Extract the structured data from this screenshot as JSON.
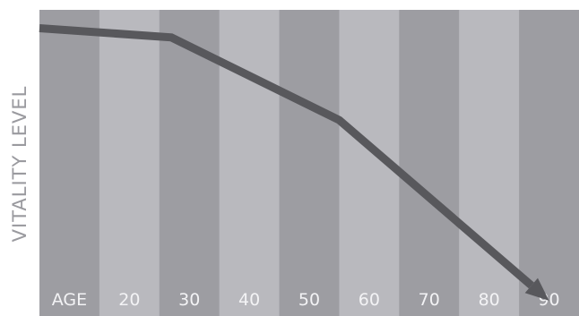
{
  "chart_data": {
    "type": "line",
    "title": "",
    "xlabel": "",
    "ylabel": "VITALITY LEVEL",
    "x_tick_labels": [
      "AGE",
      "20",
      "30",
      "40",
      "50",
      "60",
      "70",
      "80",
      "90"
    ],
    "series": [
      {
        "x": [
          10,
          32,
          60,
          95
        ],
        "y": [
          94,
          91,
          64,
          5
        ]
      }
    ],
    "xlim": [
      10,
      100
    ],
    "ylim": [
      0,
      100
    ],
    "grid": false,
    "band_colors": [
      "#9d9da2",
      "#b9b9be"
    ],
    "line_color": "#58585c",
    "tick_text_color": "#f3f3f5",
    "label_color": "#9a9a9f",
    "arrow_head": true
  }
}
